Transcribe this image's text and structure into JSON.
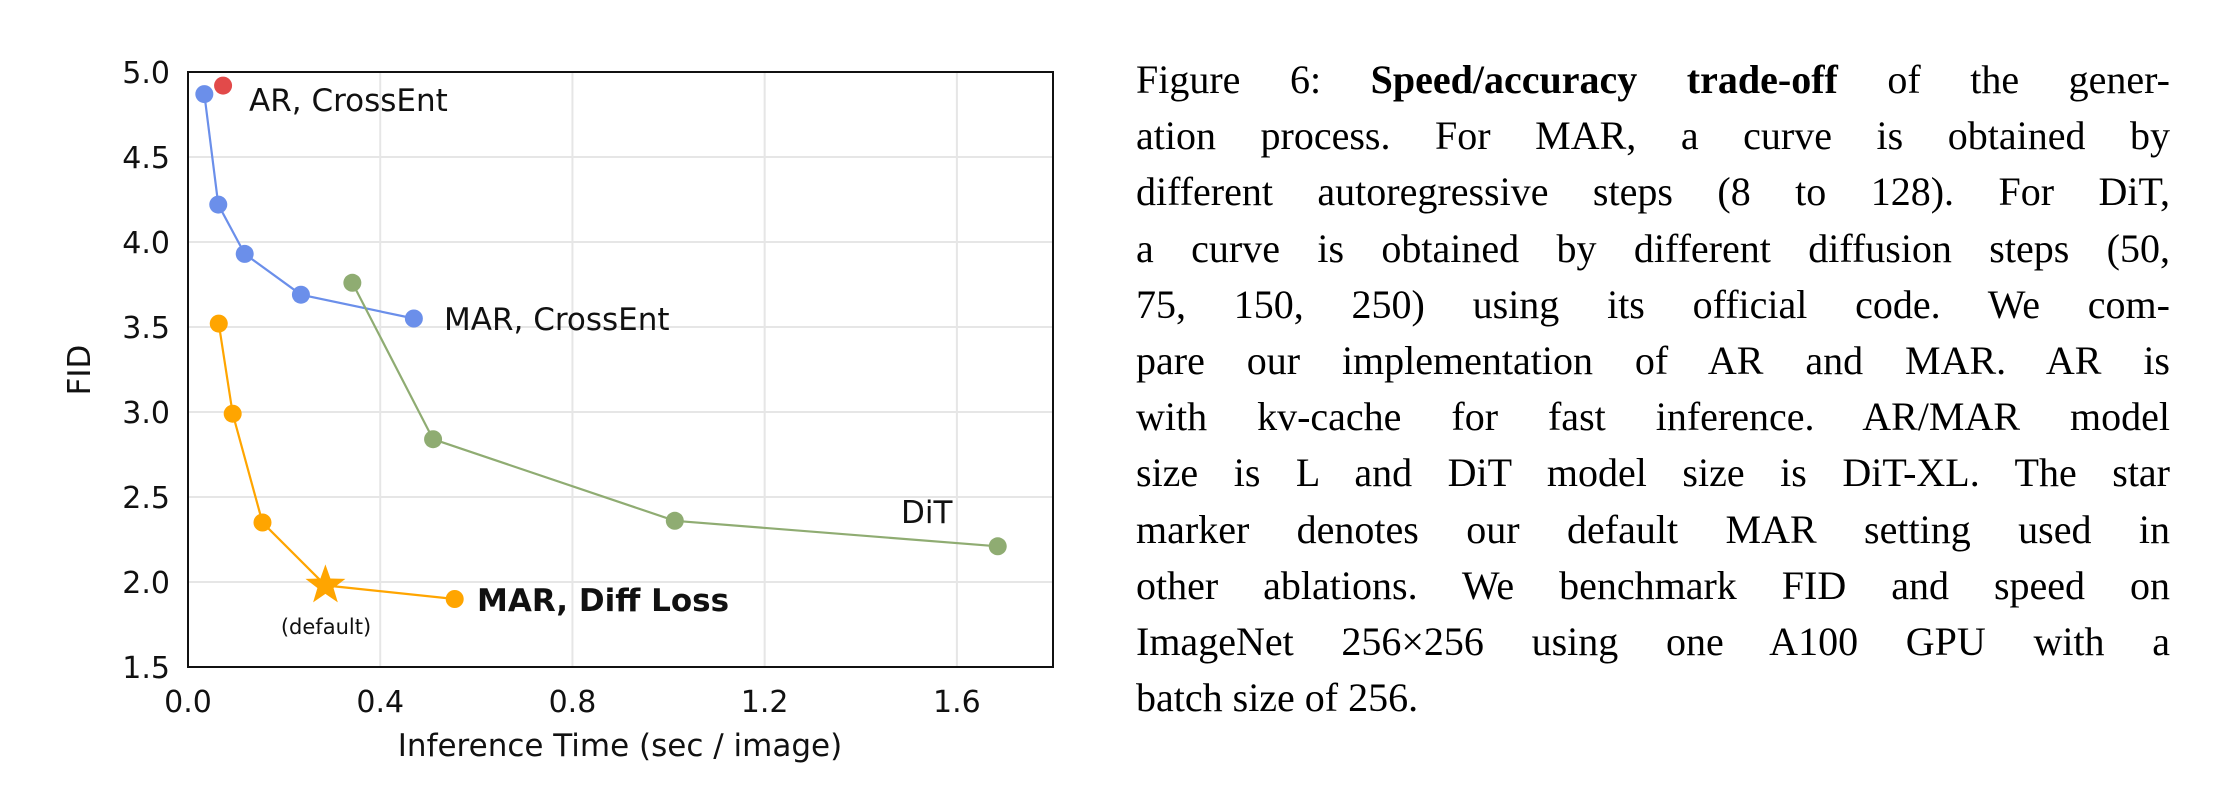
{
  "chart_data": {
    "type": "line",
    "title": "",
    "xlabel": "Inference Time (sec / image)",
    "ylabel": "FID",
    "xlim": [
      0.0,
      1.8
    ],
    "ylim": [
      1.5,
      5.0
    ],
    "xticks": [
      "0.0",
      "0.4",
      "0.8",
      "1.2",
      "1.6"
    ],
    "xtick_values": [
      0.0,
      0.4,
      0.8,
      1.2,
      1.6
    ],
    "yticks": [
      "1.5",
      "2.0",
      "2.5",
      "3.0",
      "3.5",
      "4.0",
      "4.5",
      "5.0"
    ],
    "ytick_values": [
      1.5,
      2.0,
      2.5,
      3.0,
      3.5,
      4.0,
      4.5,
      5.0
    ],
    "grid": true,
    "series": [
      {
        "name": "AR, CrossEnt",
        "color": "#e24a4a",
        "x": [
          0.073
        ],
        "y": [
          4.92
        ]
      },
      {
        "name": "MAR, CrossEnt",
        "color": "#6b8fea",
        "x": [
          0.034,
          0.063,
          0.118,
          0.235,
          0.47
        ],
        "y": [
          4.87,
          4.22,
          3.93,
          3.69,
          3.55
        ]
      },
      {
        "name": "DiT",
        "color": "#8fac72",
        "x": [
          0.342,
          0.51,
          1.013,
          1.685
        ],
        "y": [
          3.76,
          2.84,
          2.36,
          2.21
        ]
      },
      {
        "name": "MAR, Diff Loss",
        "color": "#ffa500",
        "x": [
          0.064,
          0.093,
          0.155,
          0.286,
          0.555
        ],
        "y": [
          3.52,
          2.99,
          2.35,
          1.98,
          1.9
        ],
        "star_index": 3
      }
    ],
    "annotations": {
      "ar_crossent": "AR, CrossEnt",
      "mar_crossent": "MAR, CrossEnt",
      "dit": "DiT",
      "mar_diffloss": "MAR, Diff Loss",
      "default": "(default)"
    }
  },
  "caption": {
    "label": "Figure 6:",
    "bold": "Speed/accuracy trade-off",
    "lines": [
      " of the gener-",
      "ation process.  For MAR, a curve is obtained by",
      "different autoregressive steps (8 to 128). For DiT,",
      "a curve is obtained by different diffusion steps (50,",
      "75, 150, 250) using its official code.  We com-",
      "pare our implementation of AR and MAR. AR is",
      "with kv-cache for fast inference. AR/MAR model",
      "size is L and DiT model size is DiT-XL. The star",
      "marker denotes our default MAR setting used in",
      "other ablations. We benchmark FID and speed on",
      "ImageNet 256×256 using one A100 GPU with a",
      "batch size of 256."
    ]
  }
}
